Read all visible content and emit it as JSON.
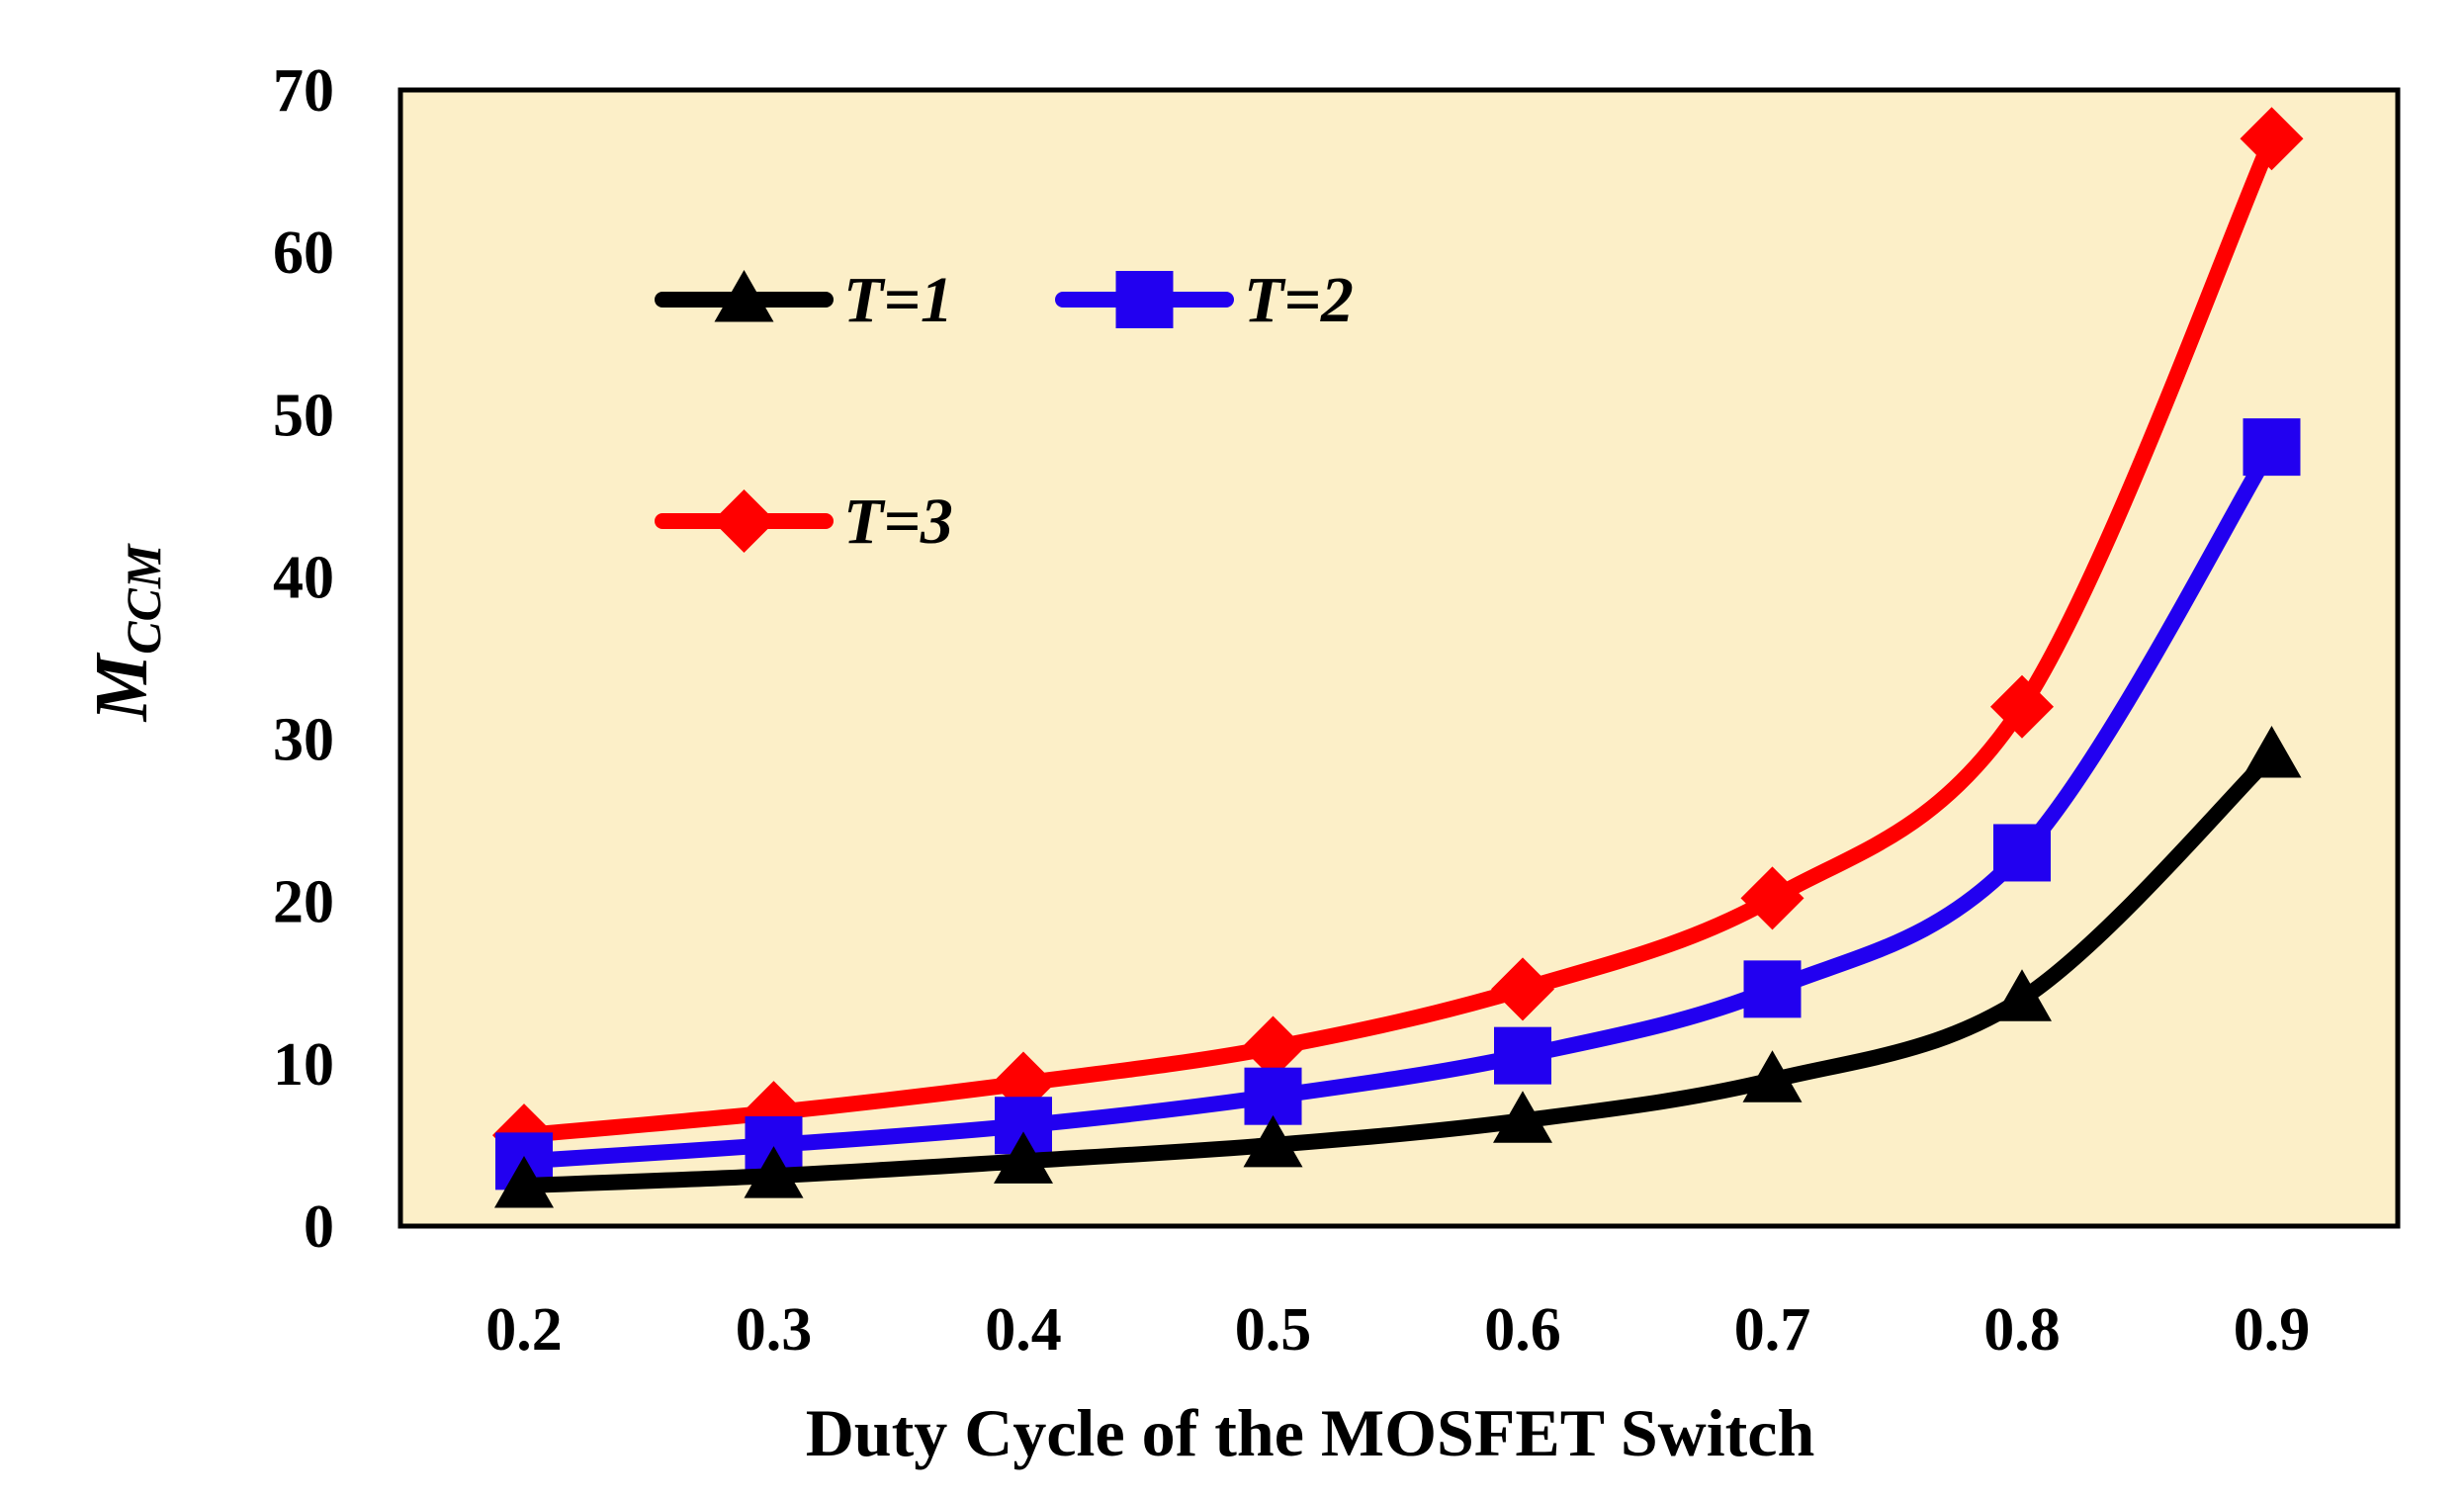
{
  "chart_data": {
    "type": "line",
    "title": "",
    "xlabel": "Duty Cycle of the MOSFET Switch",
    "ylabel": {
      "main": "M",
      "subscript": "CCM"
    },
    "x": [
      0.2,
      0.3,
      0.4,
      0.5,
      0.6,
      0.7,
      0.8,
      0.9
    ],
    "x_tick_labels": [
      "0.2",
      "0.3",
      "0.4",
      "0.5",
      "0.6",
      "0.7",
      "0.8",
      "0.9"
    ],
    "ylim": [
      0,
      70
    ],
    "y_ticks": [
      0,
      10,
      20,
      30,
      40,
      50,
      60,
      70
    ],
    "y_tick_labels": [
      "0",
      "10",
      "20",
      "30",
      "40",
      "50",
      "60",
      "70"
    ],
    "grid": false,
    "plot_background": "#FCEFC8",
    "legend_position": "top-left",
    "series": [
      {
        "name": "T=1",
        "color": "#000000",
        "marker": "triangle",
        "values": [
          2.5,
          3.1,
          4.0,
          5.0,
          6.5,
          9.0,
          14.0,
          29.0
        ]
      },
      {
        "name": "T=2",
        "color": "#2200F0",
        "marker": "square",
        "values": [
          4.0,
          5.0,
          6.2,
          8.0,
          10.5,
          14.6,
          23.0,
          48.0
        ]
      },
      {
        "name": "T=3",
        "color": "#FF0000",
        "marker": "diamond",
        "values": [
          5.6,
          7.0,
          8.8,
          11.0,
          14.6,
          20.2,
          32.0,
          67.0
        ]
      }
    ]
  }
}
